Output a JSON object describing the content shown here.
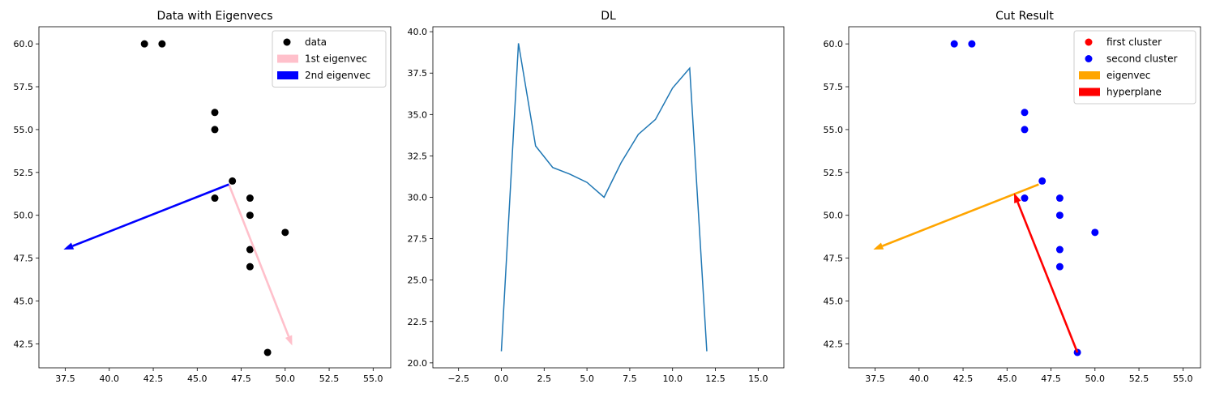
{
  "chart_data": [
    {
      "type": "scatter",
      "title": "Data with Eigenvecs",
      "xlabel": "",
      "ylabel": "",
      "xlim": [
        36,
        56
      ],
      "ylim": [
        41.1,
        61.0
      ],
      "xticks": [
        "37.5",
        "40.0",
        "42.5",
        "45.0",
        "47.5",
        "50.0",
        "52.5",
        "55.0"
      ],
      "yticks": [
        "42.5",
        "45.0",
        "47.5",
        "50.0",
        "52.5",
        "55.0",
        "57.5",
        "60.0"
      ],
      "legend": "top-right",
      "series": [
        {
          "name": "data",
          "kind": "points",
          "color": "#000000",
          "points": [
            [
              42,
              60
            ],
            [
              43,
              60
            ],
            [
              46,
              56
            ],
            [
              46,
              55
            ],
            [
              47,
              52
            ],
            [
              46,
              51
            ],
            [
              48,
              51
            ],
            [
              48,
              50
            ],
            [
              50,
              49
            ],
            [
              48,
              48
            ],
            [
              48,
              47
            ],
            [
              49,
              42
            ]
          ]
        },
        {
          "name": "1st eigenvec",
          "kind": "arrow",
          "color": "#ffc0cb",
          "from": [
            46.8,
            51.8
          ],
          "to": [
            50.4,
            42.4
          ]
        },
        {
          "name": "2nd eigenvec",
          "kind": "arrow",
          "color": "#0000ff",
          "from": [
            46.8,
            51.8
          ],
          "to": [
            37.4,
            48.0
          ]
        }
      ]
    },
    {
      "type": "line",
      "title": "DL",
      "xlabel": "",
      "ylabel": "",
      "xlim": [
        -4.0,
        16.5
      ],
      "ylim": [
        19.7,
        40.3
      ],
      "xticks": [
        "−2.5",
        "0.0",
        "2.5",
        "5.0",
        "7.5",
        "10.0",
        "12.5",
        "15.0"
      ],
      "yticks": [
        "20.0",
        "22.5",
        "25.0",
        "27.5",
        "30.0",
        "32.5",
        "35.0",
        "37.5",
        "40.0"
      ],
      "series": [
        {
          "color": "#1f77b4",
          "x": [
            0,
            1,
            2,
            3,
            4,
            5,
            6,
            7,
            8,
            9,
            10,
            11,
            12
          ],
          "y": [
            20.7,
            39.3,
            33.1,
            31.8,
            31.4,
            30.9,
            30.0,
            32.1,
            33.8,
            34.7,
            36.6,
            37.8,
            20.7
          ]
        }
      ]
    },
    {
      "type": "scatter",
      "title": "Cut Result",
      "xlabel": "",
      "ylabel": "",
      "xlim": [
        36,
        56
      ],
      "ylim": [
        41.1,
        61.0
      ],
      "xticks": [
        "37.5",
        "40.0",
        "42.5",
        "45.0",
        "47.5",
        "50.0",
        "52.5",
        "55.0"
      ],
      "yticks": [
        "42.5",
        "45.0",
        "47.5",
        "50.0",
        "52.5",
        "55.0",
        "57.5",
        "60.0"
      ],
      "legend": "top-right",
      "series": [
        {
          "name": "first cluster",
          "kind": "points",
          "color": "#ff0000",
          "points": []
        },
        {
          "name": "second cluster",
          "kind": "points",
          "color": "#0000ff",
          "points": [
            [
              42,
              60
            ],
            [
              43,
              60
            ],
            [
              46,
              56
            ],
            [
              46,
              55
            ],
            [
              47,
              52
            ],
            [
              46,
              51
            ],
            [
              48,
              51
            ],
            [
              48,
              50
            ],
            [
              50,
              49
            ],
            [
              48,
              48
            ],
            [
              48,
              47
            ],
            [
              49,
              42
            ]
          ]
        },
        {
          "name": "eigenvec",
          "kind": "arrow",
          "color": "#ffa500",
          "from": [
            46.8,
            51.8
          ],
          "to": [
            37.4,
            48.0
          ]
        },
        {
          "name": "hyperplane",
          "kind": "arrow",
          "color": "#ff0000",
          "from": [
            49.0,
            42.0
          ],
          "to": [
            45.4,
            51.3
          ]
        }
      ]
    }
  ]
}
